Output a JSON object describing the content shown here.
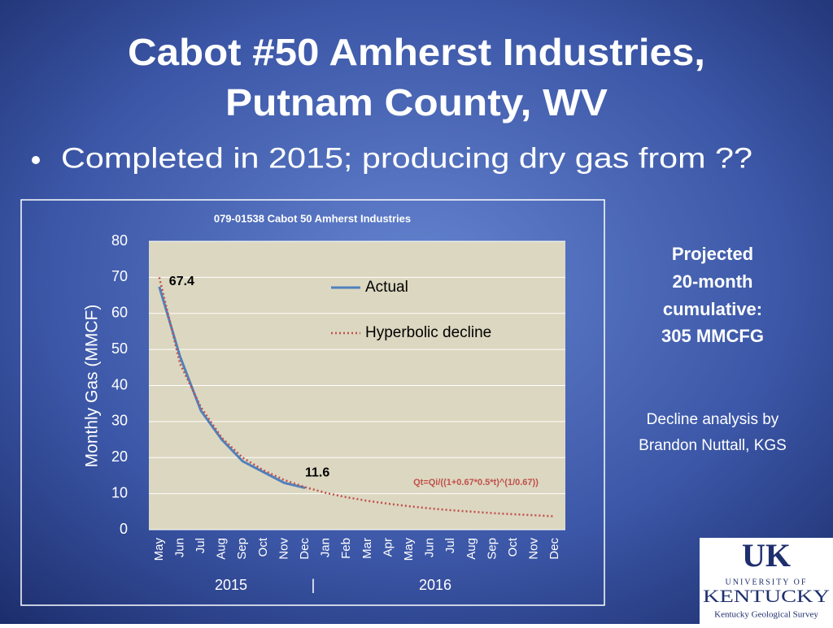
{
  "slide": {
    "title": [
      "Cabot #50 Amherst Industries,",
      "Putnam County, WV"
    ],
    "bullet": "Completed in 2015; producing dry gas from ??",
    "projection": [
      "Projected",
      "20-month",
      "cumulative:",
      "305 MMCFG"
    ],
    "credit": [
      "Decline analysis by",
      "Brandon Nuttall, KGS"
    ],
    "logo": {
      "mark": "UK",
      "line1": "UNIVERSITY OF",
      "line2": "KENTUCKY",
      "line3": "Kentucky Geological Survey"
    }
  },
  "chart_data": {
    "type": "line",
    "title": "079-01538 Cabot 50 Amherst Industries",
    "y_label": "Monthly  Gas (MMCF)",
    "categories": [
      "May",
      "Jun",
      "Jul",
      "Aug",
      "Sep",
      "Oct",
      "Nov",
      "Dec",
      "Jan",
      "Feb",
      "Mar",
      "Apr",
      "May",
      "Jun",
      "Jul",
      "Aug",
      "Sep",
      "Oct",
      "Nov",
      "Dec"
    ],
    "x_groups": [
      "2015",
      "|",
      "2016"
    ],
    "series": [
      {
        "name": "Actual",
        "color": "#4f81bd",
        "values": [
          67.4,
          48,
          33,
          25,
          19,
          16,
          13,
          11.6,
          null,
          null,
          null,
          null,
          null,
          null,
          null,
          null,
          null,
          null,
          null,
          null
        ]
      },
      {
        "name": "Hyperbolic decline",
        "color": "#c0504d",
        "dash": true,
        "values": [
          70,
          46,
          34,
          25.5,
          20,
          16.5,
          13.8,
          11.8,
          10.2,
          9,
          8,
          7.2,
          6.5,
          5.9,
          5.4,
          5,
          4.6,
          4.3,
          4,
          3.7
        ]
      }
    ],
    "annotations": [
      "Qt=Qi/((1+0.67*0.5*t)^(1/0.67))"
    ],
    "ylim": [
      0,
      80
    ],
    "yticks": [
      0,
      10,
      20,
      30,
      40,
      50,
      60,
      70,
      80
    ],
    "grid": true
  }
}
